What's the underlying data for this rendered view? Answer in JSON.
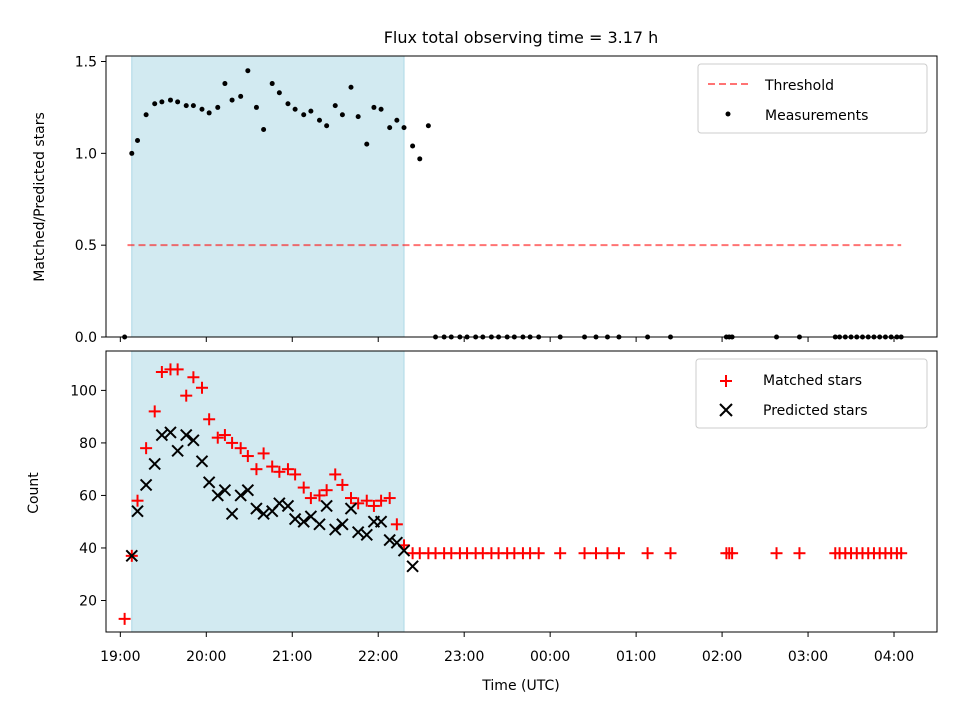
{
  "chart_data": [
    {
      "type": "scatter",
      "title": "Flux total observing time = 3.17 h",
      "xlabel": "",
      "ylabel": "Matched/Predicted stars",
      "xlim": [
        "18:50",
        "04:30"
      ],
      "ylim": [
        0,
        1.53
      ],
      "yticks": [
        0.0,
        0.5,
        1.0,
        1.5
      ],
      "ytick_labels": [
        "0.0",
        "0.5",
        "1.0",
        "1.5"
      ],
      "shaded_interval": [
        "19:08",
        "22:18"
      ],
      "shaded_color": "#add8e6",
      "legend": "upper right",
      "threshold": {
        "name": "Threshold",
        "value": 0.5,
        "x_start": "19:05",
        "x_end": "04:05",
        "color": "#ff0000",
        "style": "dashed"
      },
      "series": [
        {
          "name": "Measurements",
          "marker": "dot",
          "color": "#000000",
          "x": [
            "19:03",
            "19:08",
            "19:12",
            "19:18",
            "19:24",
            "19:29",
            "19:35",
            "19:40",
            "19:46",
            "19:51",
            "19:57",
            "20:02",
            "20:08",
            "20:13",
            "20:18",
            "20:24",
            "20:29",
            "20:35",
            "20:40",
            "20:46",
            "20:51",
            "20:57",
            "21:02",
            "21:08",
            "21:13",
            "21:19",
            "21:24",
            "21:30",
            "21:35",
            "21:41",
            "21:46",
            "21:52",
            "21:57",
            "22:02",
            "22:08",
            "22:13",
            "22:18",
            "22:24",
            "22:29",
            "22:35",
            "22:40",
            "22:46",
            "22:51",
            "22:57",
            "23:02",
            "23:08",
            "23:13",
            "23:19",
            "23:24",
            "23:30",
            "23:35",
            "23:41",
            "23:46",
            "23:52",
            "00:07",
            "00:24",
            "00:32",
            "00:40",
            "00:48",
            "01:08",
            "01:24",
            "02:03",
            "02:05",
            "02:07",
            "02:38",
            "02:54",
            "03:19",
            "03:22",
            "03:26",
            "03:30",
            "03:34",
            "03:38",
            "03:42",
            "03:46",
            "03:50",
            "03:54",
            "03:58",
            "04:02",
            "04:05"
          ],
          "y": [
            0.0,
            1.0,
            1.07,
            1.21,
            1.27,
            1.28,
            1.29,
            1.28,
            1.26,
            1.26,
            1.24,
            1.22,
            1.25,
            1.38,
            1.29,
            1.31,
            1.45,
            1.25,
            1.13,
            1.38,
            1.33,
            1.27,
            1.24,
            1.21,
            1.23,
            1.18,
            1.15,
            1.26,
            1.21,
            1.36,
            1.2,
            1.05,
            1.25,
            1.24,
            1.14,
            1.18,
            1.14,
            1.04,
            0.97,
            1.15,
            0.0,
            0.0,
            0.0,
            0.0,
            0.0,
            0.0,
            0.0,
            0.0,
            0.0,
            0.0,
            0.0,
            0.0,
            0.0,
            0.0,
            0.0,
            0.0,
            0.0,
            0.0,
            0.0,
            0.0,
            0.0,
            0.0,
            0.0,
            0.0,
            0.0,
            0.0,
            0.0,
            0.0,
            0.0,
            0.0,
            0.0,
            0.0,
            0.0,
            0.0,
            0.0,
            0.0,
            0.0,
            0.0,
            0.0
          ]
        }
      ]
    },
    {
      "type": "scatter",
      "title": "",
      "xlabel": "Time (UTC)",
      "ylabel": "Count",
      "xlim": [
        "18:50",
        "04:30"
      ],
      "ylim": [
        8,
        115
      ],
      "yticks": [
        20,
        40,
        60,
        80,
        100
      ],
      "ytick_labels": [
        "20",
        "40",
        "60",
        "80",
        "100"
      ],
      "xtick_labels": [
        "19:00",
        "20:00",
        "21:00",
        "22:00",
        "23:00",
        "00:00",
        "01:00",
        "02:00",
        "03:00",
        "04:00"
      ],
      "shaded_interval": [
        "19:08",
        "22:18"
      ],
      "shaded_color": "#add8e6",
      "legend": "upper right",
      "series": [
        {
          "name": "Matched stars",
          "marker": "plus",
          "color": "#ff0000",
          "x": [
            "19:03",
            "19:08",
            "19:12",
            "19:18",
            "19:24",
            "19:29",
            "19:35",
            "19:40",
            "19:46",
            "19:51",
            "19:57",
            "20:02",
            "20:08",
            "20:13",
            "20:18",
            "20:24",
            "20:29",
            "20:35",
            "20:40",
            "20:46",
            "20:51",
            "20:57",
            "21:02",
            "21:08",
            "21:13",
            "21:19",
            "21:24",
            "21:30",
            "21:35",
            "21:41",
            "21:46",
            "21:52",
            "21:57",
            "22:02",
            "22:08",
            "22:13",
            "22:18",
            "22:24",
            "22:29",
            "22:35",
            "22:40",
            "22:46",
            "22:51",
            "22:57",
            "23:02",
            "23:08",
            "23:13",
            "23:19",
            "23:24",
            "23:30",
            "23:35",
            "23:41",
            "23:46",
            "23:52",
            "00:07",
            "00:24",
            "00:32",
            "00:40",
            "00:48",
            "01:08",
            "01:24",
            "02:03",
            "02:05",
            "02:07",
            "02:38",
            "02:54",
            "03:19",
            "03:22",
            "03:26",
            "03:30",
            "03:34",
            "03:38",
            "03:42",
            "03:46",
            "03:50",
            "03:54",
            "03:58",
            "04:02",
            "04:05"
          ],
          "y": [
            13,
            37,
            58,
            78,
            92,
            107,
            108,
            108,
            98,
            105,
            101,
            89,
            82,
            83,
            80,
            78,
            75,
            70,
            76,
            71,
            69,
            70,
            68,
            63,
            59,
            60,
            62,
            68,
            64,
            59,
            57,
            58,
            56,
            58,
            59,
            49,
            41,
            38,
            38,
            38,
            38,
            38,
            38,
            38,
            38,
            38,
            38,
            38,
            38,
            38,
            38,
            38,
            38,
            38,
            38,
            38,
            38,
            38,
            38,
            38,
            38,
            38,
            38,
            38,
            38,
            38,
            38,
            38,
            38,
            38,
            38,
            38,
            38,
            38,
            38,
            38,
            38,
            38,
            38
          ]
        },
        {
          "name": "Predicted stars",
          "marker": "x",
          "color": "#000000",
          "x": [
            "19:08",
            "19:12",
            "19:18",
            "19:24",
            "19:29",
            "19:35",
            "19:40",
            "19:46",
            "19:51",
            "19:57",
            "20:02",
            "20:08",
            "20:13",
            "20:18",
            "20:24",
            "20:29",
            "20:35",
            "20:40",
            "20:46",
            "20:51",
            "20:57",
            "21:02",
            "21:08",
            "21:13",
            "21:19",
            "21:24",
            "21:30",
            "21:35",
            "21:41",
            "21:46",
            "21:52",
            "21:57",
            "22:02",
            "22:08",
            "22:13",
            "22:18",
            "22:24"
          ],
          "y": [
            37,
            54,
            64,
            72,
            83,
            84,
            77,
            83,
            81,
            73,
            65,
            60,
            62,
            53,
            60,
            62,
            55,
            53,
            54,
            57,
            56,
            51,
            50,
            52,
            49,
            56,
            47,
            49,
            55,
            46,
            45,
            50,
            50,
            43,
            42,
            39,
            33
          ]
        }
      ]
    }
  ]
}
